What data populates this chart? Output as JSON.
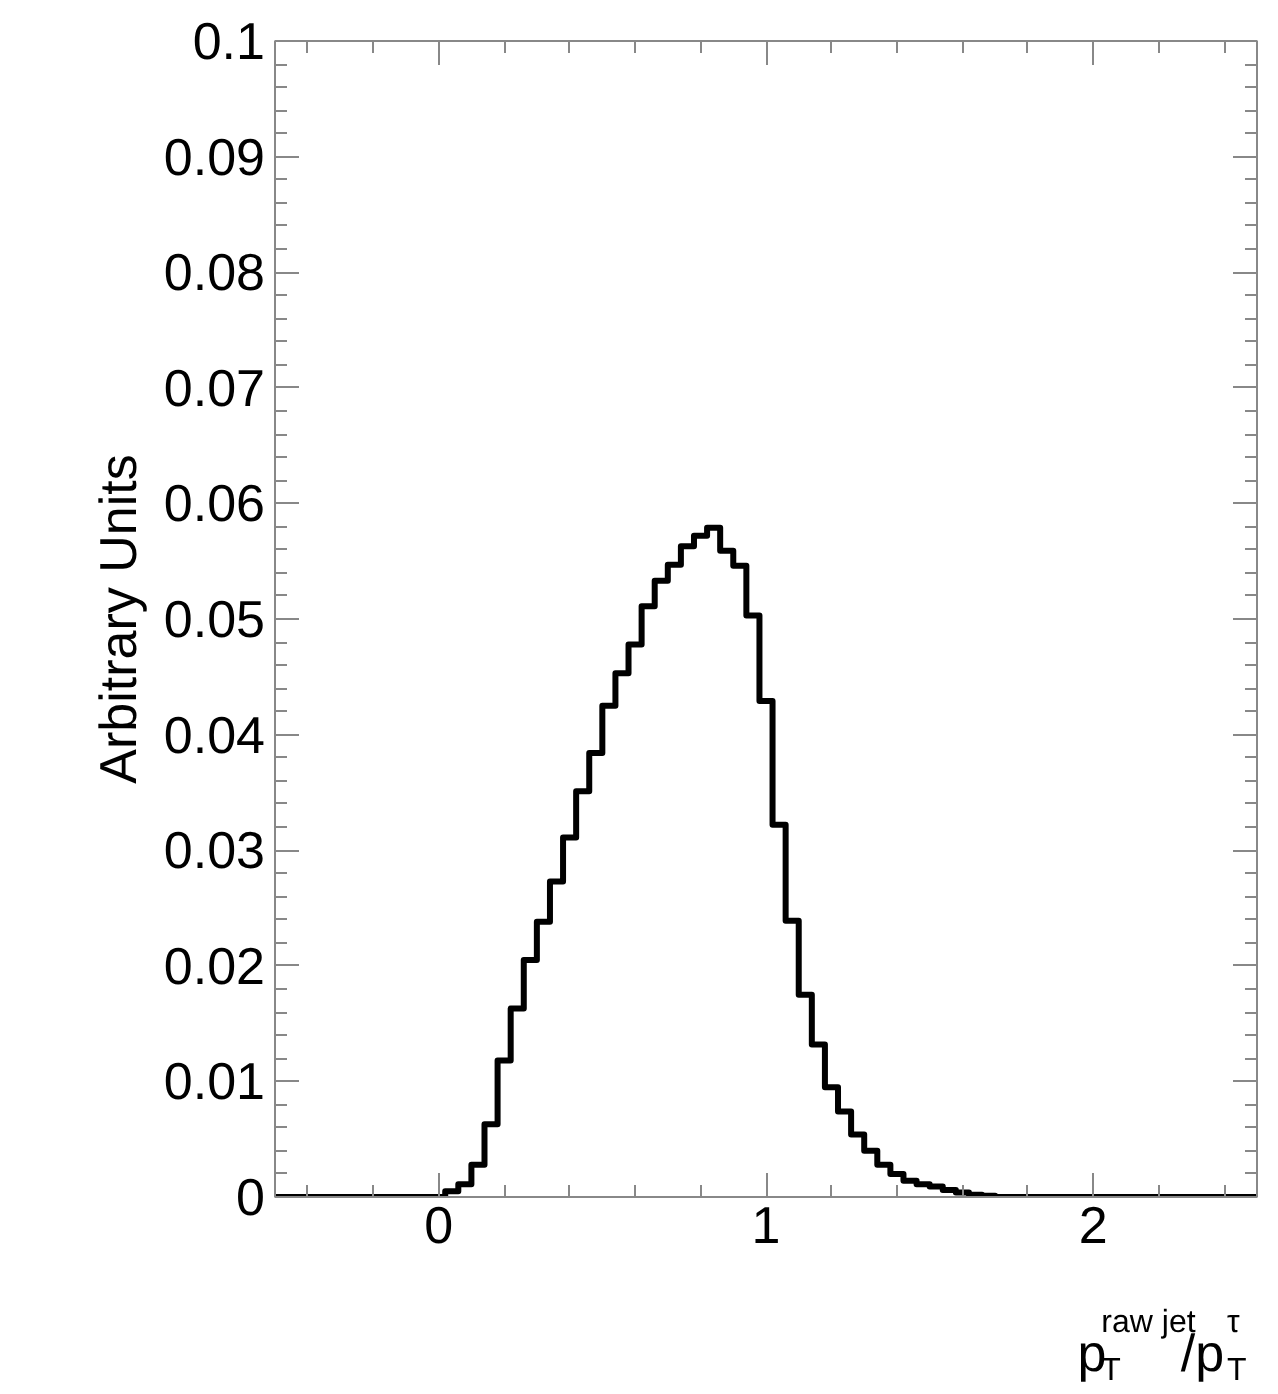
{
  "chart_data": {
    "type": "histogram",
    "ylabel": "Arbitrary Units",
    "xlabel": "p$^{raw jet}$$_{T}$/p$^{τ}$$_{T}$",
    "color": "#000000",
    "bins": [
      -0.5,
      -0.46,
      -0.42,
      -0.38,
      -0.34,
      -0.3,
      -0.26,
      -0.22,
      -0.18,
      -0.14,
      -0.1,
      -0.06,
      -0.02,
      0.02,
      0.06,
      0.1,
      0.14,
      0.18,
      0.22,
      0.26,
      0.3,
      0.34,
      0.38,
      0.42,
      0.46,
      0.5,
      0.54,
      0.58,
      0.62,
      0.66,
      0.7,
      0.74,
      0.78,
      0.82,
      0.86,
      0.9,
      0.94,
      0.98,
      1.02,
      1.06,
      1.1,
      1.14,
      1.18,
      1.22,
      1.26,
      1.3,
      1.34,
      1.38,
      1.42,
      1.46,
      1.5,
      1.54,
      1.58,
      1.62,
      1.66,
      1.7,
      1.74,
      1.78,
      1.82,
      1.86,
      1.9,
      1.94,
      1.98,
      2.02,
      2.06,
      2.1,
      2.14,
      2.18,
      2.22,
      2.26,
      2.3,
      2.34,
      2.38,
      2.42,
      2.46,
      2.5
    ],
    "values": [
      0,
      0,
      0,
      0,
      0,
      0,
      0,
      0,
      0,
      0,
      0,
      0,
      0,
      0.0005,
      0.0011,
      0.0028,
      0.0063,
      0.0118,
      0.0163,
      0.0205,
      0.0238,
      0.0273,
      0.0311,
      0.0351,
      0.0384,
      0.0425,
      0.0453,
      0.0478,
      0.0511,
      0.0533,
      0.0547,
      0.0563,
      0.0572,
      0.0579,
      0.0559,
      0.0546,
      0.0503,
      0.0429,
      0.0322,
      0.0239,
      0.0175,
      0.0132,
      0.0095,
      0.0074,
      0.0054,
      0.004,
      0.0028,
      0.002,
      0.0014,
      0.0011,
      0.0009,
      0.0006,
      0.0004,
      0.0002,
      0.0001,
      0,
      0,
      0,
      0,
      0,
      0,
      0,
      0,
      0,
      0,
      0,
      0,
      0,
      0,
      0,
      0,
      0,
      0,
      0,
      0
    ],
    "xlim": [
      -0.5,
      2.5
    ],
    "ylim": [
      0,
      0.1
    ],
    "xticks": [
      0,
      1,
      2
    ],
    "yticks": [
      0,
      0.01,
      0.02,
      0.03,
      0.04,
      0.05,
      0.06,
      0.07,
      0.08,
      0.09,
      0.1
    ],
    "grid": false
  }
}
